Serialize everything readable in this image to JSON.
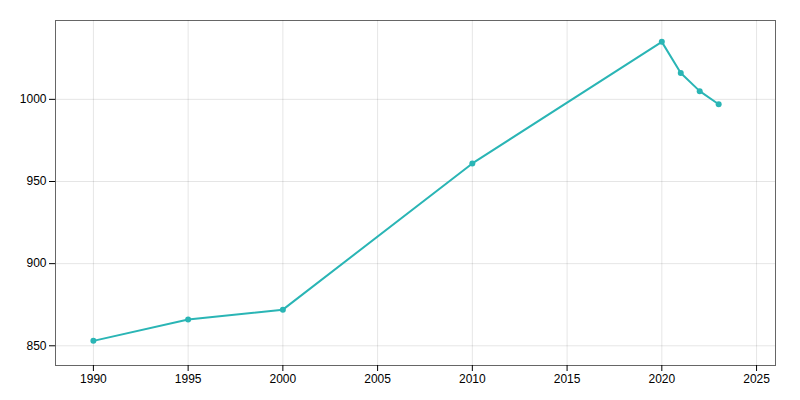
{
  "chart_data": {
    "type": "line",
    "x": [
      1990,
      1995,
      2000,
      2010,
      2020,
      2021,
      2022,
      2023
    ],
    "values": [
      853,
      866,
      872,
      961,
      1035,
      1016,
      1005,
      997
    ],
    "color": "#2ab5b5",
    "marker": "circle",
    "xlim": [
      1988,
      2026
    ],
    "ylim": [
      838,
      1048
    ],
    "xticks": [
      1990,
      1995,
      2000,
      2005,
      2010,
      2015,
      2020,
      2025
    ],
    "yticks": [
      850,
      900,
      950,
      1000
    ],
    "grid": true
  }
}
